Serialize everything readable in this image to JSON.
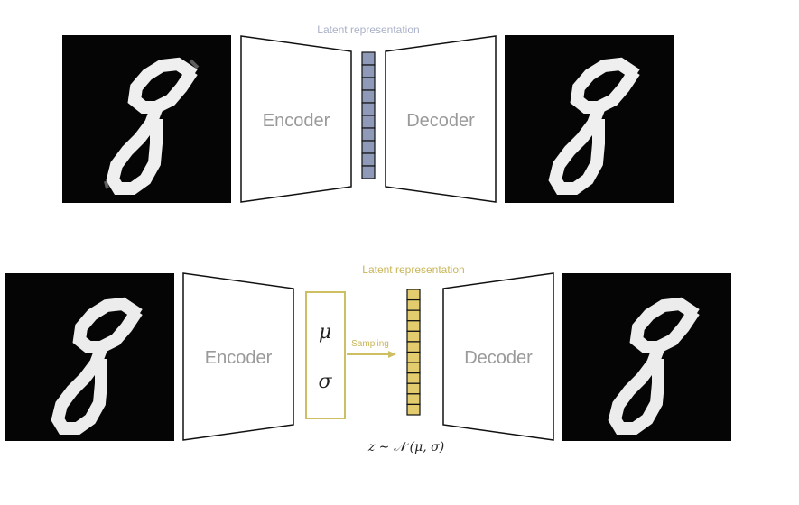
{
  "autoencoder": {
    "latent_label": "Latent representation",
    "encoder_label": "Encoder",
    "decoder_label": "Decoder",
    "latent_color": "#8f9ab8",
    "latent_cells": 10
  },
  "vae": {
    "latent_label": "Latent representation",
    "encoder_label": "Encoder",
    "decoder_label": "Decoder",
    "mu_symbol": "μ",
    "sigma_symbol": "σ",
    "sampling_label": "Sampling",
    "formula": "z ∼ 𝒩 (μ, σ)",
    "latent_color": "#e3cc6e",
    "accent_color": "#c9b65a",
    "latent_cells": 12
  },
  "digit_icon": "handwritten-digit-8-icon"
}
